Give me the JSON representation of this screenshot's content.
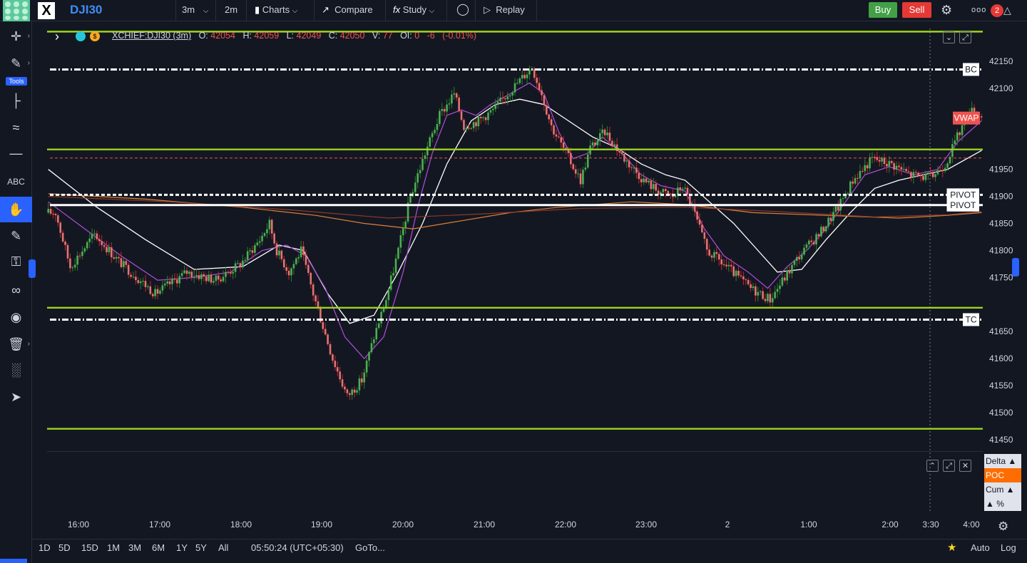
{
  "toolbar": {
    "symbol": "DJI30",
    "interval": "3m",
    "interval2": "2m",
    "charts_label": "Charts",
    "compare_label": "Compare",
    "study_label": "Study",
    "replay_label": "Replay",
    "buy_label": "Buy",
    "sell_label": "Sell",
    "more_label": "ooo",
    "alert_count": "2"
  },
  "leftbar": {
    "tools_label": "Tools"
  },
  "legend": {
    "title": "XCHIEF:DJI30 (3m)",
    "open_label": "O:",
    "open": "42054",
    "high_label": "H:",
    "high": "42059",
    "low_label": "L:",
    "low": "42049",
    "close_label": "C:",
    "close": "42050",
    "volume_label": "V:",
    "volume": "77",
    "oi_label": "OI:",
    "oi": "0",
    "change": "-6",
    "change_pct": "(-0.01%)"
  },
  "chart_data": {
    "type": "candlestick",
    "ylim": [
      41430,
      42220
    ],
    "price_ticks": [
      42150,
      42100,
      41950,
      41900,
      41850,
      41800,
      41750,
      41650,
      41600,
      41550,
      41500,
      41450
    ],
    "time_ticks": [
      "16:00",
      "17:00",
      "18:00",
      "19:00",
      "20:00",
      "21:00",
      "22:00",
      "23:00",
      "2",
      "1:00",
      "2:00",
      "3:30",
      "4:00"
    ],
    "horizontal_levels": [
      {
        "price": 42205,
        "label": "42205",
        "style": "solid",
        "color": "#9bd41e"
      },
      {
        "price": 42135,
        "label": "BC",
        "style": "dashdot",
        "color": "#ffffff"
      },
      {
        "price": 41987,
        "label": "41987",
        "style": "solid",
        "color": "#9bd41e"
      },
      {
        "price": 41971,
        "label": "41971",
        "style": "dashed",
        "color": "#ef5350"
      },
      {
        "price": 41903,
        "label": "PIVOT",
        "style": "dashed",
        "color": "#ffffff"
      },
      {
        "price": 41884,
        "label": "PIVOT",
        "style": "solid",
        "color": "#ffffff"
      },
      {
        "price": 41694,
        "label": "41694",
        "style": "solid",
        "color": "#9bd41e"
      },
      {
        "price": 41672,
        "label": "TC",
        "style": "dashdot",
        "color": "#ffffff"
      },
      {
        "price": 41470,
        "label": "41470",
        "style": "solid",
        "color": "#9bd41e"
      }
    ],
    "vwap": {
      "label": "VWAP",
      "value": "42045"
    },
    "price_path": [
      [
        0,
        41870
      ],
      [
        4,
        41870
      ],
      [
        10,
        41770
      ],
      [
        20,
        41830
      ],
      [
        30,
        41780
      ],
      [
        45,
        41720
      ],
      [
        58,
        41760
      ],
      [
        70,
        41745
      ],
      [
        80,
        41775
      ],
      [
        88,
        41820
      ],
      [
        92,
        41850
      ],
      [
        95,
        41800
      ],
      [
        100,
        41760
      ],
      [
        105,
        41800
      ],
      [
        110,
        41720
      ],
      [
        118,
        41600
      ],
      [
        124,
        41530
      ],
      [
        130,
        41560
      ],
      [
        135,
        41640
      ],
      [
        140,
        41710
      ],
      [
        145,
        41800
      ],
      [
        150,
        41900
      ],
      [
        156,
        41980
      ],
      [
        162,
        42050
      ],
      [
        168,
        42090
      ],
      [
        172,
        42030
      ],
      [
        178,
        42040
      ],
      [
        184,
        42060
      ],
      [
        190,
        42090
      ],
      [
        196,
        42120
      ],
      [
        200,
        42140
      ],
      [
        204,
        42090
      ],
      [
        208,
        42030
      ],
      [
        214,
        41980
      ],
      [
        220,
        41930
      ],
      [
        224,
        41990
      ],
      [
        230,
        42020
      ],
      [
        238,
        41970
      ],
      [
        246,
        41930
      ],
      [
        252,
        41910
      ],
      [
        258,
        41900
      ],
      [
        262,
        41920
      ],
      [
        266,
        41880
      ],
      [
        272,
        41800
      ],
      [
        280,
        41770
      ],
      [
        290,
        41730
      ],
      [
        298,
        41710
      ],
      [
        304,
        41750
      ],
      [
        310,
        41790
      ],
      [
        318,
        41830
      ],
      [
        326,
        41880
      ],
      [
        332,
        41930
      ],
      [
        340,
        41970
      ],
      [
        348,
        41960
      ],
      [
        356,
        41940
      ],
      [
        364,
        41935
      ],
      [
        370,
        41960
      ],
      [
        376,
        42020
      ],
      [
        380,
        42060
      ],
      [
        384,
        42050
      ]
    ],
    "overlays": {
      "white_ma": [
        [
          0,
          41950
        ],
        [
          20,
          41880
        ],
        [
          40,
          41820
        ],
        [
          60,
          41765
        ],
        [
          80,
          41770
        ],
        [
          95,
          41810
        ],
        [
          105,
          41800
        ],
        [
          115,
          41720
        ],
        [
          124,
          41665
        ],
        [
          134,
          41680
        ],
        [
          144,
          41760
        ],
        [
          154,
          41850
        ],
        [
          164,
          41960
        ],
        [
          174,
          42040
        ],
        [
          184,
          42070
        ],
        [
          194,
          42080
        ],
        [
          204,
          42070
        ],
        [
          214,
          42040
        ],
        [
          224,
          42010
        ],
        [
          234,
          41990
        ],
        [
          244,
          41960
        ],
        [
          254,
          41940
        ],
        [
          262,
          41930
        ],
        [
          272,
          41890
        ],
        [
          282,
          41850
        ],
        [
          292,
          41800
        ],
        [
          300,
          41760
        ],
        [
          310,
          41765
        ],
        [
          320,
          41820
        ],
        [
          330,
          41870
        ],
        [
          340,
          41915
        ],
        [
          350,
          41930
        ],
        [
          360,
          41940
        ],
        [
          370,
          41950
        ],
        [
          378,
          41970
        ],
        [
          384,
          41985
        ]
      ],
      "purple_ma": [
        [
          0,
          41890
        ],
        [
          15,
          41840
        ],
        [
          30,
          41790
        ],
        [
          45,
          41745
        ],
        [
          60,
          41750
        ],
        [
          75,
          41760
        ],
        [
          88,
          41800
        ],
        [
          98,
          41810
        ],
        [
          106,
          41790
        ],
        [
          114,
          41730
        ],
        [
          122,
          41640
        ],
        [
          130,
          41600
        ],
        [
          138,
          41640
        ],
        [
          146,
          41760
        ],
        [
          152,
          41880
        ],
        [
          158,
          41980
        ],
        [
          164,
          42050
        ],
        [
          170,
          42060
        ],
        [
          176,
          42050
        ],
        [
          182,
          42070
        ],
        [
          190,
          42090
        ],
        [
          198,
          42110
        ],
        [
          204,
          42090
        ],
        [
          210,
          42020
        ],
        [
          216,
          41970
        ],
        [
          222,
          41980
        ],
        [
          228,
          42010
        ],
        [
          236,
          41980
        ],
        [
          244,
          41940
        ],
        [
          252,
          41920
        ],
        [
          262,
          41910
        ],
        [
          270,
          41840
        ],
        [
          278,
          41790
        ],
        [
          288,
          41760
        ],
        [
          296,
          41730
        ],
        [
          304,
          41770
        ],
        [
          312,
          41800
        ],
        [
          320,
          41840
        ],
        [
          328,
          41890
        ],
        [
          336,
          41940
        ],
        [
          346,
          41955
        ],
        [
          356,
          41940
        ],
        [
          366,
          41950
        ],
        [
          374,
          42000
        ],
        [
          384,
          42040
        ]
      ],
      "orange_ma": [
        [
          0,
          41905
        ],
        [
          40,
          41895
        ],
        [
          80,
          41880
        ],
        [
          110,
          41865
        ],
        [
          130,
          41850
        ],
        [
          150,
          41840
        ],
        [
          170,
          41855
        ],
        [
          190,
          41870
        ],
        [
          210,
          41880
        ],
        [
          240,
          41890
        ],
        [
          262,
          41885
        ],
        [
          290,
          41870
        ],
        [
          320,
          41865
        ],
        [
          350,
          41860
        ],
        [
          370,
          41865
        ],
        [
          384,
          41870
        ]
      ],
      "brown_ma": [
        [
          0,
          41900
        ],
        [
          50,
          41890
        ],
        [
          100,
          41875
        ],
        [
          140,
          41860
        ],
        [
          180,
          41868
        ],
        [
          220,
          41878
        ],
        [
          262,
          41880
        ],
        [
          300,
          41872
        ],
        [
          340,
          41862
        ],
        [
          370,
          41866
        ],
        [
          384,
          41872
        ]
      ]
    }
  },
  "sub_panel": {
    "delta_label": "Delta ▲",
    "poc_label": "POC",
    "cum_label": "Cum ▲",
    "pct_label": "▲ %"
  },
  "bottombar": {
    "ranges": [
      "1D",
      "5D",
      "15D",
      "1M",
      "3M",
      "6M",
      "1Y",
      "5Y",
      "All"
    ],
    "clock": "05:50:24 (UTC+05:30)",
    "goto_label": "GoTo...",
    "auto_label": "Auto",
    "log_label": "Log"
  }
}
